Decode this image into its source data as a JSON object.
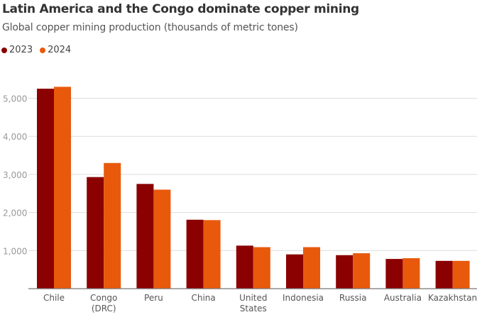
{
  "chart_data": {
    "type": "bar",
    "title": "Latin America and the Congo dominate copper mining",
    "subtitle": "Global copper mining production (thousands of metric tones)",
    "categories": [
      [
        "Chile"
      ],
      [
        "Congo",
        "(DRC)"
      ],
      [
        "Peru"
      ],
      [
        "China"
      ],
      [
        "United",
        "States"
      ],
      [
        "Indonesia"
      ],
      [
        "Russia"
      ],
      [
        "Australia"
      ],
      [
        "Kazakhstan"
      ]
    ],
    "series": [
      {
        "name": "2023",
        "color": "#8b0000",
        "values": [
          5250,
          2930,
          2750,
          1810,
          1130,
          900,
          880,
          780,
          730
        ]
      },
      {
        "name": "2024",
        "color": "#e8590c",
        "values": [
          5300,
          3300,
          2600,
          1800,
          1090,
          1090,
          930,
          800,
          730
        ]
      }
    ],
    "yticks": [
      1000,
      2000,
      3000,
      4000,
      5000
    ],
    "ytick_labels": [
      "1,000",
      "2,000",
      "3,000",
      "4,000",
      "5,000"
    ],
    "ylim": [
      0,
      5500
    ],
    "xlabel": "",
    "ylabel": "",
    "grid": true,
    "legend_position": "top-left"
  }
}
